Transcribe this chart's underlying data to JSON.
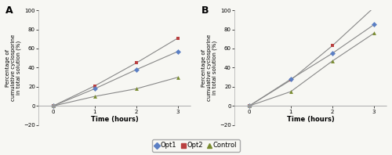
{
  "panel_A": {
    "label": "A",
    "time": [
      0,
      1,
      2,
      3
    ],
    "opt1": [
      0,
      18,
      38,
      57
    ],
    "opt2": [
      0,
      21,
      45,
      71
    ],
    "control": [
      0,
      10,
      18,
      30
    ]
  },
  "panel_B": {
    "label": "B",
    "time": [
      0,
      1,
      2,
      3
    ],
    "opt1": [
      0,
      28,
      55,
      85
    ],
    "opt2": [
      0,
      27,
      63,
      103
    ],
    "control": [
      0,
      15,
      47,
      76
    ]
  },
  "colors": {
    "opt1": "#5b7fc4",
    "opt2": "#b94040",
    "control": "#7a8c30"
  },
  "line_color": "#888888",
  "ylim": [
    -20,
    100
  ],
  "xlim": [
    -0.35,
    3.3
  ],
  "yticks": [
    -20,
    0,
    20,
    40,
    60,
    80,
    100
  ],
  "xticks": [
    0,
    1,
    2,
    3
  ],
  "ylabel": "Percentage of\ncumulative cyclosporine\nin total solution (%)",
  "xlabel": "Time (hours)",
  "background_color": "#f7f7f3"
}
